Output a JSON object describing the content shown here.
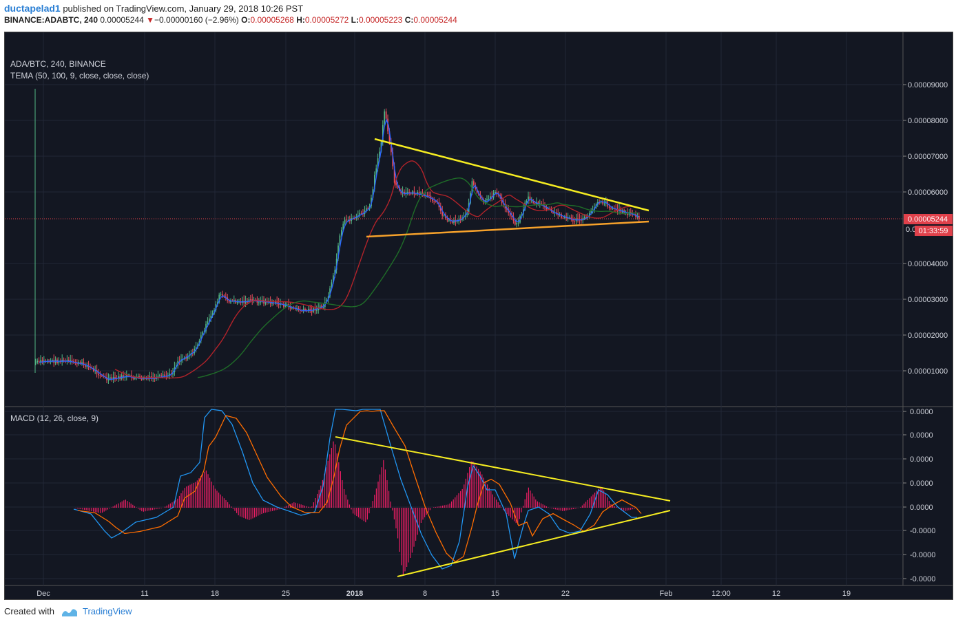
{
  "header": {
    "author": "ductapelad1",
    "published": "published on TradingView.com, January 29, 2018 10:26 PST",
    "symbol_line": "BINANCE:ADABTC, 240",
    "price": "0.00005244",
    "change_arrow": "▼",
    "change": "−0.00000160 (−2.96%)",
    "o_label": "O:",
    "o": "0.00005268",
    "h_label": "H:",
    "h": "0.00005272",
    "l_label": "L:",
    "l": "0.00005223",
    "c_label": "C:",
    "c": "0.00005244"
  },
  "main_pane": {
    "title": "ADA/BTC, 240, BINANCE",
    "indicator": "TEMA (50, 100, 9, close, close, close)",
    "y_ticks": [
      "0.00009000",
      "0.00008000",
      "0.00007000",
      "0.00006000",
      "0.00004000",
      "0.00003000",
      "0.00002000",
      "0.00001000"
    ],
    "partial_tick": "0.0",
    "current_price_label": "0.00005244",
    "countdown_label": "01:33:59"
  },
  "macd_pane": {
    "indicator": "MACD (12, 26, close, 9)",
    "y_ticks": [
      "0.0000",
      "0.0000",
      "0.0000",
      "0.0000",
      "0.0000",
      "-0.0000",
      "-0.0000",
      "-0.0000"
    ]
  },
  "time_axis": [
    "Dec",
    "11",
    "18",
    "25",
    "2018",
    "8",
    "15",
    "22",
    "Feb",
    "12:00",
    "12",
    "19"
  ],
  "footer": {
    "created_with": "Created with",
    "brand": "TradingView"
  },
  "colors": {
    "background": "#131722",
    "up_candle": "#53b987",
    "down_candle": "#eb4d5c",
    "trendline_yellow": "#f5ec21",
    "trendline_orange": "#f7a22b",
    "ema_blue": "#2962ff",
    "ema_red": "#b2232a",
    "ema_green": "#1f6d28",
    "macd_line": "#2196f3",
    "signal_line": "#ff6d00",
    "histogram": "#e91e63",
    "price_label_bg": "#e0414b"
  }
}
